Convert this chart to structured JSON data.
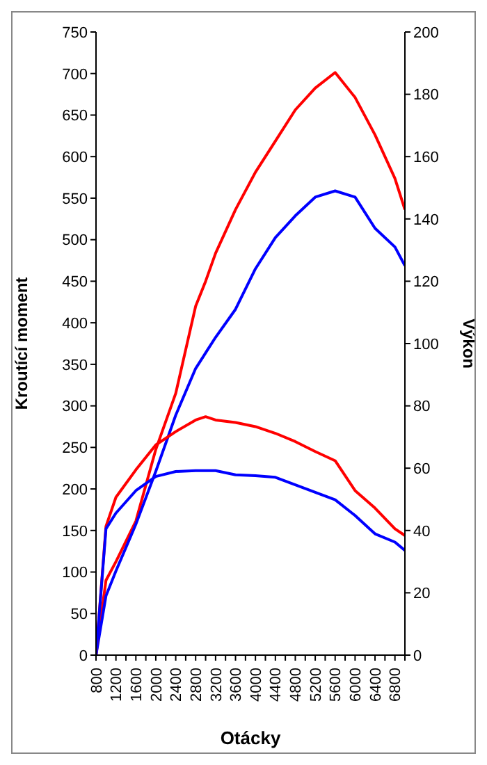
{
  "chart_data": {
    "type": "line",
    "xlabel": "Otácky",
    "ylabel": "Kroutící moment",
    "y2label": "Výkon",
    "x": [
      800,
      1000,
      1200,
      1600,
      2000,
      2400,
      2800,
      3000,
      3200,
      3600,
      4000,
      4400,
      4800,
      5200,
      5600,
      6000,
      6400,
      6800,
      7000
    ],
    "series": [
      {
        "color": "#ff0000",
        "axis": "y2",
        "values": [
          0,
          24,
          30,
          43,
          66,
          84,
          112,
          120,
          129,
          143,
          155,
          165,
          175,
          182,
          187,
          179,
          167,
          153,
          143
        ]
      },
      {
        "color": "#0000ff",
        "axis": "y2",
        "values": [
          0,
          19,
          27,
          42,
          59,
          77,
          92,
          97,
          102,
          111,
          124,
          134,
          141,
          147,
          149,
          147,
          137,
          131,
          125
        ]
      },
      {
        "color": "#ff0000",
        "values": [
          0,
          155,
          190,
          223,
          253,
          269,
          283,
          287,
          283,
          280,
          275,
          267,
          257,
          245,
          234,
          198,
          177,
          152,
          144
        ]
      },
      {
        "color": "#0000ff",
        "values": [
          0,
          152,
          171,
          198,
          215,
          221,
          222,
          222,
          222,
          217,
          216,
          214,
          205,
          196,
          187,
          168,
          146,
          136,
          126
        ]
      }
    ],
    "xlim": [
      800,
      7000
    ],
    "xticks": [
      800,
      {
        "value": 1000,
        "label": null
      },
      1200,
      {
        "value": 1400,
        "label": null
      },
      1600,
      {
        "value": 1800,
        "label": null
      },
      2000,
      {
        "value": 2200,
        "label": null
      },
      2400,
      {
        "value": 2600,
        "label": null
      },
      2800,
      {
        "value": 3000,
        "label": null
      },
      3200,
      {
        "value": 3400,
        "label": null
      },
      3600,
      {
        "value": 3800,
        "label": null
      },
      4000,
      {
        "value": 4200,
        "label": null
      },
      4400,
      {
        "value": 4600,
        "label": null
      },
      4800,
      {
        "value": 5000,
        "label": null
      },
      5200,
      {
        "value": 5400,
        "label": null
      },
      5600,
      {
        "value": 5800,
        "label": null
      },
      6000,
      {
        "value": 6200,
        "label": null
      },
      6400,
      {
        "value": 6600,
        "label": null
      },
      6800,
      {
        "value": 7000,
        "label": null
      }
    ],
    "ylim": [
      0,
      750
    ],
    "yticks": [
      0,
      50,
      100,
      150,
      200,
      250,
      300,
      350,
      400,
      450,
      500,
      550,
      600,
      650,
      700,
      750
    ],
    "y2lim": [
      0,
      200
    ],
    "y2ticks": [
      0,
      20,
      40,
      60,
      80,
      100,
      120,
      140,
      160,
      180,
      200
    ],
    "grid": false,
    "legend": false,
    "marker": "none",
    "line_style": "solid"
  }
}
